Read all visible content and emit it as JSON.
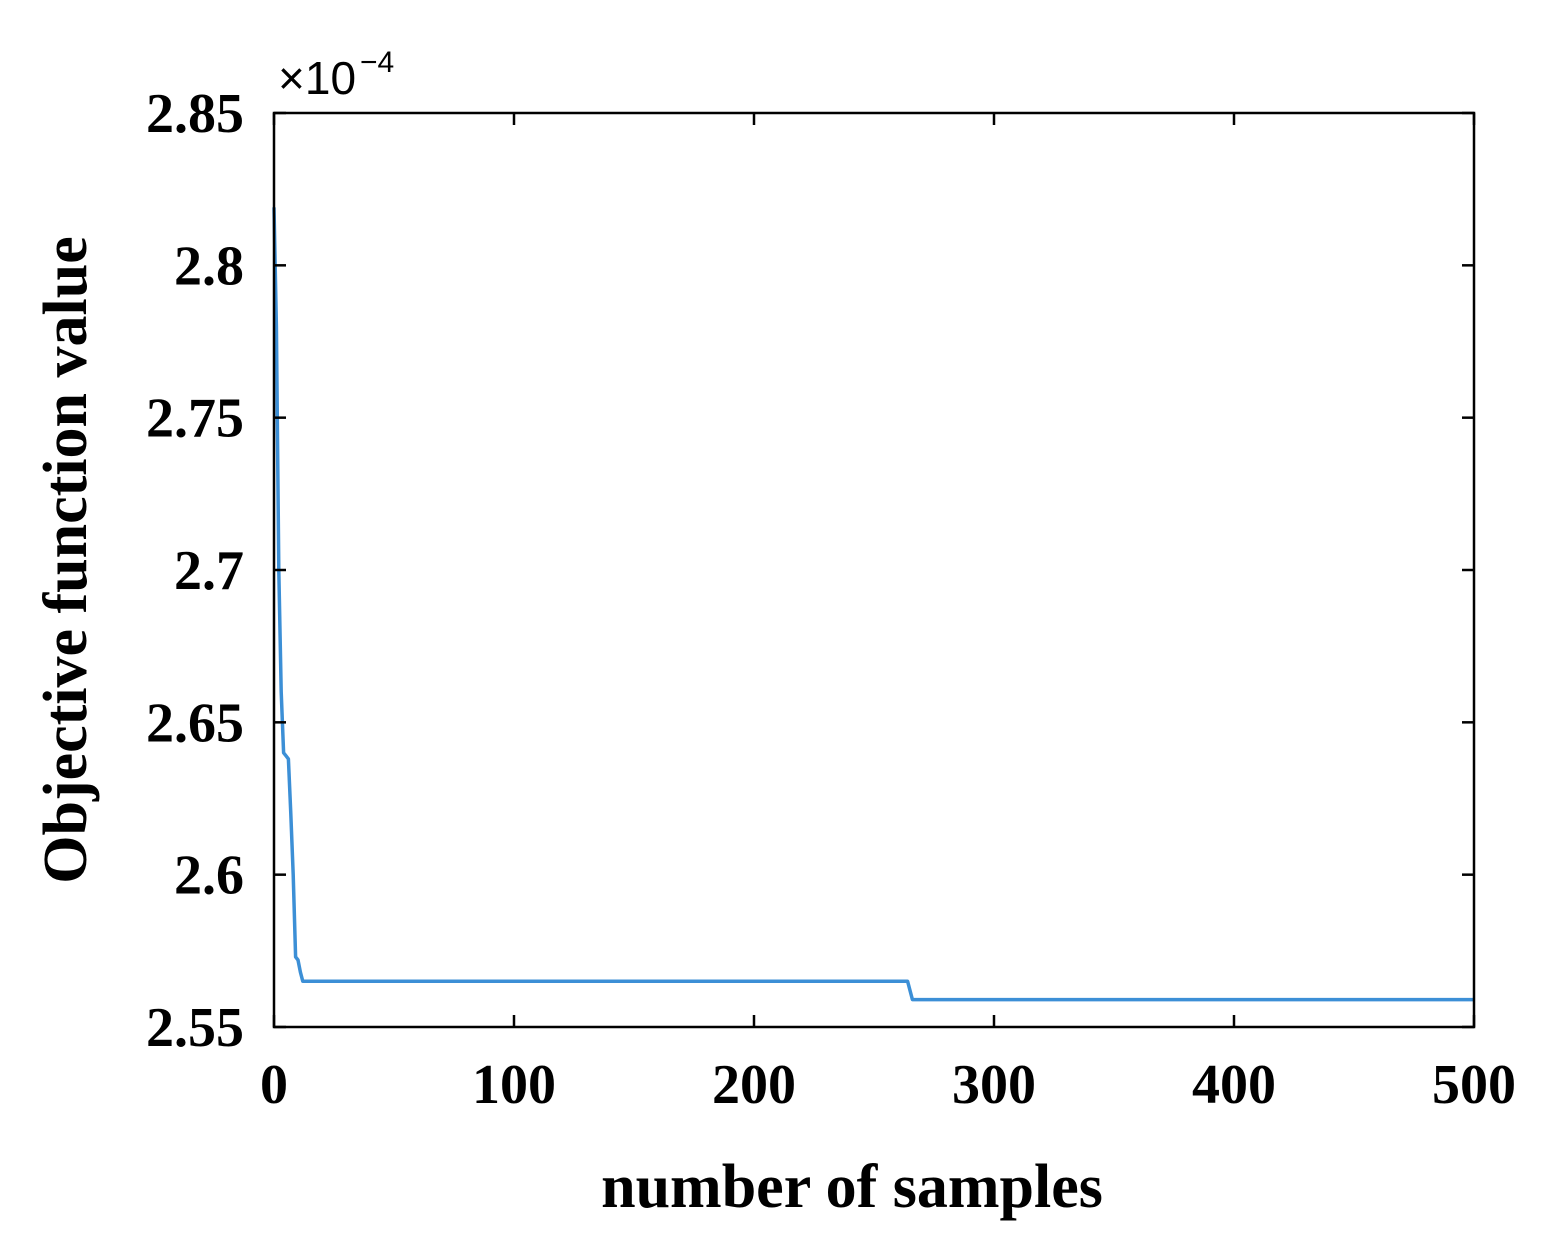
{
  "chart_data": {
    "type": "line",
    "xlabel": "number of samples",
    "ylabel": "Objective function value",
    "y_exponent_label": {
      "base": "×10",
      "exponent": "−4"
    },
    "xlim": [
      0,
      500
    ],
    "ylim": [
      2.55,
      2.85
    ],
    "x_ticks": [
      0,
      100,
      200,
      300,
      400,
      500
    ],
    "x_tick_labels": [
      "0",
      "100",
      "200",
      "300",
      "400",
      "500"
    ],
    "y_ticks": [
      2.55,
      2.6,
      2.65,
      2.7,
      2.75,
      2.8,
      2.85
    ],
    "y_tick_labels": [
      "2.55",
      "2.6",
      "2.65",
      "2.7",
      "2.75",
      "2.8",
      "2.85"
    ],
    "grid": false,
    "box": true,
    "series": [
      {
        "color": "#3c8fd6",
        "x": [
          0,
          1,
          2,
          3,
          4,
          5,
          6,
          7,
          8,
          9,
          10,
          11,
          12,
          13,
          264,
          265,
          266,
          500
        ],
        "y": [
          2.819,
          2.78,
          2.7,
          2.66,
          2.64,
          2.639,
          2.638,
          2.62,
          2.6,
          2.573,
          2.572,
          2.568,
          2.565,
          2.565,
          2.565,
          2.562,
          2.559,
          2.559
        ]
      }
    ]
  }
}
